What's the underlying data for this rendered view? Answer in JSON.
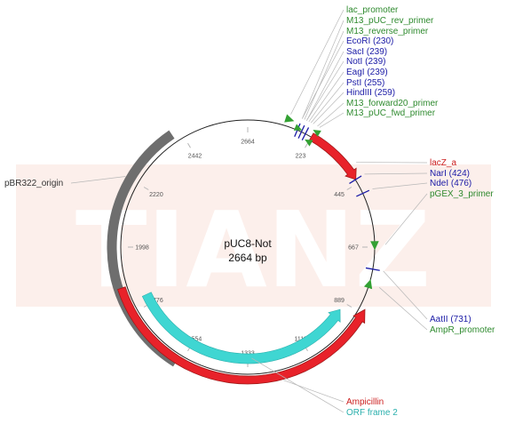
{
  "plasmid": {
    "name": "pUC8-Not",
    "size_label": "2664 bp",
    "length": 2664
  },
  "watermark": {
    "text": "TIANZ"
  },
  "colors": {
    "feature_red": "#e8222a",
    "orf_cyan": "#3fd6d2",
    "origin_gray": "#6e6e6e",
    "primer_green": "#33a133",
    "site_blue": "#1a1aa6",
    "watermark_bg": "#fcefeb"
  },
  "ticks": [
    {
      "label": "223"
    },
    {
      "label": "445"
    },
    {
      "label": "667"
    },
    {
      "label": "889"
    },
    {
      "label": "1111"
    },
    {
      "label": "1333"
    },
    {
      "label": "1554"
    },
    {
      "label": "1776"
    },
    {
      "label": "1998"
    },
    {
      "label": "2220"
    },
    {
      "label": "2442"
    },
    {
      "label": "2664"
    }
  ],
  "labels": {
    "lac_promoter": "lac_promoter",
    "m13_puc_rev_primer": "M13_pUC_rev_primer",
    "m13_reverse_primer": "M13_reverse_primer",
    "ecori": "EcoRI (230)",
    "saci": "SacI (239)",
    "noti": "NotI (239)",
    "eagi": "EagI (239)",
    "psti": "PstI (255)",
    "hindiii": "HindIII (259)",
    "m13_forward20_primer": "M13_forward20_primer",
    "m13_puc_fwd_primer": "M13_pUC_fwd_primer",
    "lacz_a": "lacZ_a",
    "nari": "NarI (424)",
    "ndei": "NdeI (476)",
    "pgex_3_primer": "pGEX_3_primer",
    "aatii": "AatII (731)",
    "ampr_promoter": "AmpR_promoter",
    "pbr322_origin": "pBR322_origin",
    "ampicillin": "Ampicillin",
    "orf_frame_2": "ORF frame 2"
  }
}
